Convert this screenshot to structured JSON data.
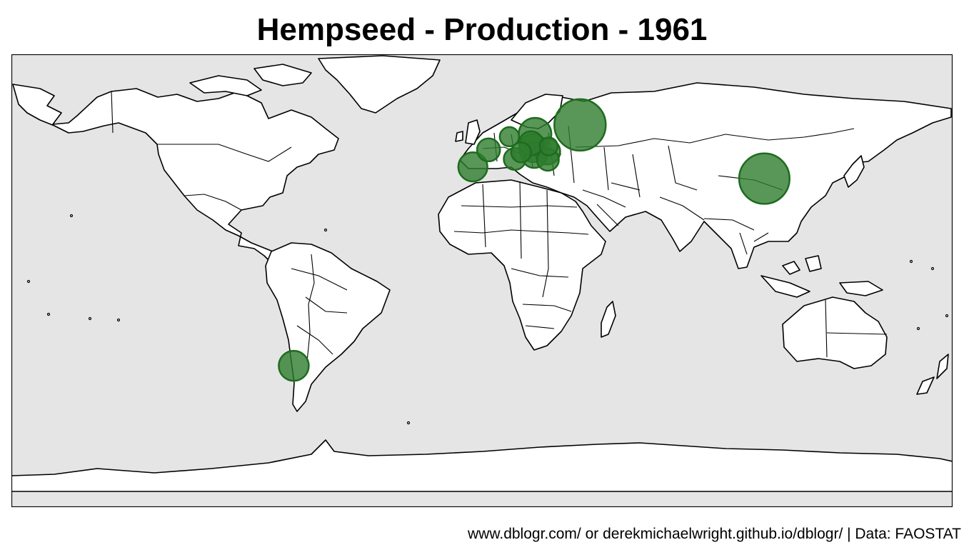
{
  "title": "Hempseed - Production - 1961",
  "caption": "www.dblogr.com/ or derekmichaelwright.github.io/dblogr/ | Data: FAOSTAT",
  "colors": {
    "ocean": "#e5e5e5",
    "land": "#ffffff",
    "border": "#000000",
    "bubble_fill": "#2e7d2e",
    "bubble_stroke": "#1f6b1f"
  },
  "map": {
    "projection": "equirectangular",
    "lon_range": [
      -180,
      180
    ],
    "lat_range": [
      -90,
      83
    ]
  },
  "production_bubbles": [
    {
      "lon": 37.5,
      "lat": 56.0,
      "relative_size": 1.0
    },
    {
      "lon": 108.0,
      "lat": 35.5,
      "relative_size": 0.96
    },
    {
      "lon": 20.3,
      "lat": 52.5,
      "relative_size": 0.4
    },
    {
      "lon": -72.0,
      "lat": -36.0,
      "relative_size": 0.34
    },
    {
      "lon": -3.5,
      "lat": 40.0,
      "relative_size": 0.32
    },
    {
      "lon": 19.5,
      "lat": 47.2,
      "relative_size": 0.3
    },
    {
      "lon": 25.0,
      "lat": 45.8,
      "relative_size": 0.25
    },
    {
      "lon": 20.0,
      "lat": 44.5,
      "relative_size": 0.25
    },
    {
      "lon": 18.8,
      "lat": 49.0,
      "relative_size": 0.22
    },
    {
      "lon": 2.5,
      "lat": 46.5,
      "relative_size": 0.2
    },
    {
      "lon": 12.5,
      "lat": 43.0,
      "relative_size": 0.18
    },
    {
      "lon": 25.2,
      "lat": 42.7,
      "relative_size": 0.18
    },
    {
      "lon": 15.0,
      "lat": 45.5,
      "relative_size": 0.15
    },
    {
      "lon": 10.5,
      "lat": 51.5,
      "relative_size": 0.14
    },
    {
      "lon": 25.5,
      "lat": 47.8,
      "relative_size": 0.12
    }
  ]
}
